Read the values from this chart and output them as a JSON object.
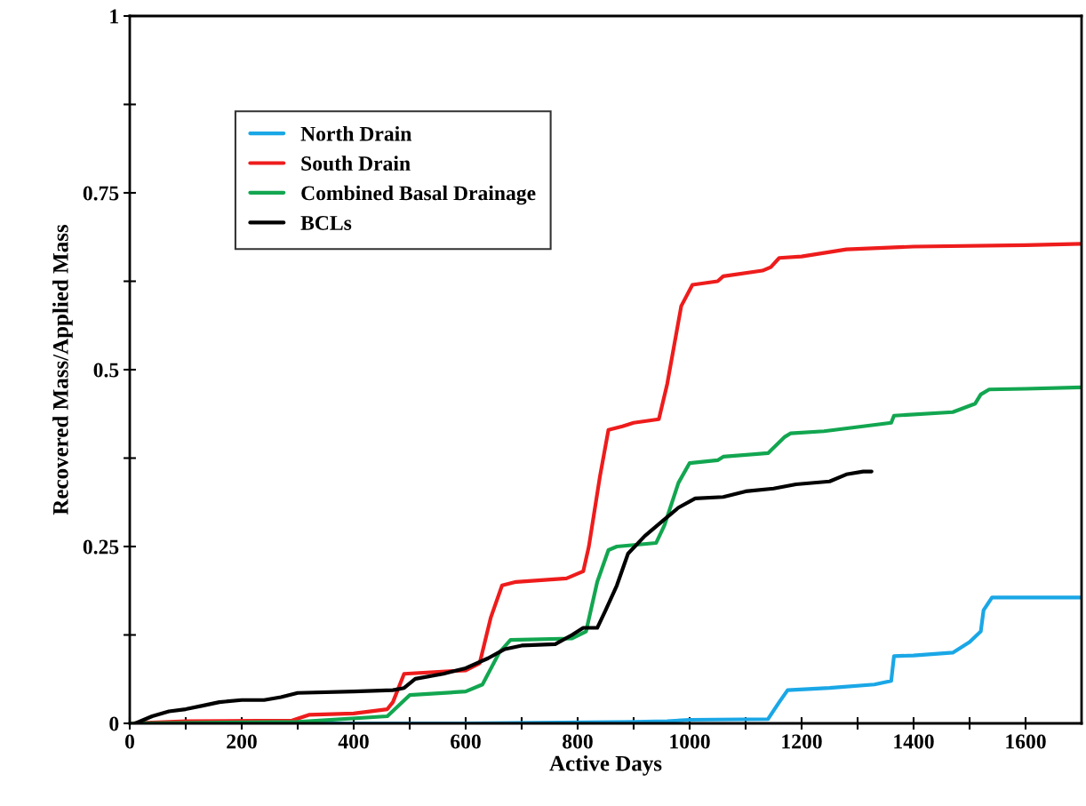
{
  "chart_data": {
    "type": "line",
    "xlabel": "Active Days",
    "ylabel": "Recovered Mass/Applied Mass",
    "xlim": [
      0,
      1700
    ],
    "ylim": [
      0,
      1
    ],
    "xticks": [
      0,
      {
        "value": 100,
        "label": null
      },
      200,
      {
        "value": 300,
        "label": null
      },
      400,
      {
        "value": 500,
        "label": null
      },
      600,
      {
        "value": 700,
        "label": null
      },
      800,
      {
        "value": 900,
        "label": null
      },
      1000,
      {
        "value": 1100,
        "label": null
      },
      1200,
      {
        "value": 1300,
        "label": null
      },
      1400,
      {
        "value": 1500,
        "label": null
      },
      1600
    ],
    "yticks": [
      0,
      {
        "value": 0.125,
        "label": null
      },
      0.25,
      {
        "value": 0.375,
        "label": null
      },
      0.5,
      {
        "value": 0.625,
        "label": null
      },
      0.75,
      {
        "value": 0.875,
        "label": null
      },
      1
    ],
    "grid": false,
    "legend": "top left",
    "marker": "none",
    "line_style": "solid",
    "series": [
      {
        "name": "North Drain",
        "color": "#1aa7e6",
        "x": [
          0,
          400,
          600,
          900,
          960,
          1000,
          1140,
          1160,
          1175,
          1250,
          1330,
          1360,
          1365,
          1400,
          1470,
          1500,
          1520,
          1525,
          1540,
          1700
        ],
        "values": [
          0,
          0,
          0,
          0.002,
          0.003,
          0.005,
          0.006,
          0.03,
          0.047,
          0.05,
          0.055,
          0.06,
          0.095,
          0.096,
          0.1,
          0.115,
          0.13,
          0.16,
          0.178,
          0.178
        ]
      },
      {
        "name": "South Drain",
        "color": "#ee1c1c",
        "x": [
          0,
          100,
          290,
          320,
          400,
          460,
          470,
          490,
          600,
          625,
          645,
          665,
          690,
          780,
          810,
          820,
          840,
          855,
          880,
          900,
          945,
          960,
          985,
          1005,
          1050,
          1060,
          1130,
          1145,
          1160,
          1200,
          1280,
          1400,
          1600,
          1700
        ],
        "values": [
          0,
          0.003,
          0.004,
          0.012,
          0.014,
          0.02,
          0.03,
          0.07,
          0.075,
          0.085,
          0.15,
          0.195,
          0.2,
          0.205,
          0.215,
          0.25,
          0.35,
          0.415,
          0.42,
          0.425,
          0.43,
          0.48,
          0.59,
          0.62,
          0.625,
          0.632,
          0.64,
          0.645,
          0.658,
          0.66,
          0.67,
          0.674,
          0.676,
          0.678
        ]
      },
      {
        "name": "Combined Basal Drainage",
        "color": "#12a650",
        "x": [
          0,
          300,
          460,
          500,
          600,
          630,
          660,
          680,
          790,
          815,
          835,
          855,
          870,
          940,
          955,
          980,
          1000,
          1050,
          1060,
          1140,
          1170,
          1180,
          1240,
          1360,
          1365,
          1470,
          1510,
          1520,
          1535,
          1600,
          1700
        ],
        "values": [
          0,
          0.002,
          0.01,
          0.04,
          0.045,
          0.055,
          0.1,
          0.118,
          0.12,
          0.13,
          0.2,
          0.245,
          0.25,
          0.255,
          0.28,
          0.34,
          0.368,
          0.372,
          0.377,
          0.382,
          0.405,
          0.41,
          0.413,
          0.425,
          0.435,
          0.44,
          0.452,
          0.465,
          0.472,
          0.473,
          0.475
        ]
      },
      {
        "name": "BCLs",
        "color": "#000000",
        "x": [
          10,
          40,
          70,
          100,
          130,
          160,
          200,
          240,
          270,
          300,
          400,
          470,
          490,
          510,
          560,
          600,
          640,
          670,
          700,
          760,
          790,
          810,
          835,
          850,
          870,
          890,
          920,
          950,
          980,
          1010,
          1060,
          1100,
          1150,
          1190,
          1250,
          1280,
          1310,
          1325
        ],
        "values": [
          0,
          0.01,
          0.017,
          0.02,
          0.025,
          0.03,
          0.033,
          0.033,
          0.037,
          0.043,
          0.045,
          0.047,
          0.05,
          0.063,
          0.07,
          0.078,
          0.092,
          0.105,
          0.11,
          0.112,
          0.125,
          0.135,
          0.135,
          0.16,
          0.195,
          0.24,
          0.265,
          0.285,
          0.305,
          0.318,
          0.32,
          0.328,
          0.332,
          0.338,
          0.342,
          0.352,
          0.356,
          0.356
        ]
      }
    ]
  }
}
